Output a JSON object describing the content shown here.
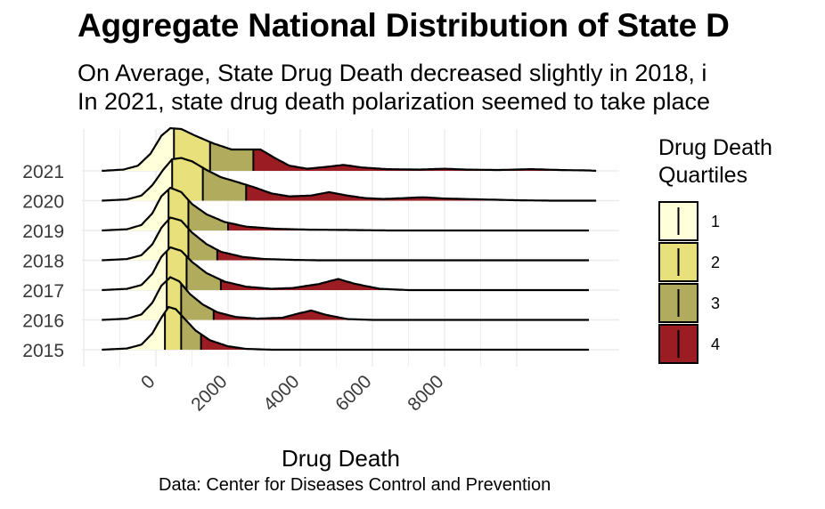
{
  "chart_data": {
    "type": "ridgeline",
    "title": "Aggregate National Distribution of State D",
    "subtitle": "On Average, State Drug Death decreased slightly in 2018, i\nIn 2021, state drug death polarization seemed to take place",
    "xlabel": "Drug Death",
    "caption": "Data: Center for Diseases Control and Prevention",
    "x_ticks": [
      0,
      2000,
      4000,
      6000,
      8000
    ],
    "xlim": [
      -2000,
      12200
    ],
    "categories": [
      "2015",
      "2016",
      "2017",
      "2018",
      "2019",
      "2020",
      "2021"
    ],
    "legend": {
      "title": "Drug Death\nQuartiles",
      "position": "right",
      "items": [
        {
          "label": "1",
          "color": "#FFFFD9"
        },
        {
          "label": "2",
          "color": "#E8E07A"
        },
        {
          "label": "3",
          "color": "#B0AB5D"
        },
        {
          "label": "4",
          "color": "#9B1C22"
        }
      ]
    },
    "series": [
      {
        "name": "2015",
        "quartiles": [
          250,
          700,
          1250
        ],
        "density": [
          [
            -1500,
            0
          ],
          [
            -800,
            0.03
          ],
          [
            -400,
            0.12
          ],
          [
            -100,
            0.38
          ],
          [
            150,
            0.75
          ],
          [
            350,
            1.0
          ],
          [
            550,
            0.95
          ],
          [
            800,
            0.72
          ],
          [
            1100,
            0.45
          ],
          [
            1500,
            0.22
          ],
          [
            2000,
            0.08
          ],
          [
            2500,
            0.02
          ],
          [
            3200,
            0
          ],
          [
            5000,
            0
          ],
          [
            8000,
            0
          ],
          [
            12000,
            0
          ]
        ]
      },
      {
        "name": "2016",
        "quartiles": [
          300,
          700,
          1600
        ],
        "density": [
          [
            -1500,
            0
          ],
          [
            -800,
            0.03
          ],
          [
            -400,
            0.13
          ],
          [
            -100,
            0.4
          ],
          [
            150,
            0.8
          ],
          [
            400,
            1.0
          ],
          [
            650,
            0.9
          ],
          [
            950,
            0.6
          ],
          [
            1300,
            0.36
          ],
          [
            1700,
            0.18
          ],
          [
            2200,
            0.07
          ],
          [
            2800,
            0.03
          ],
          [
            3500,
            0.05
          ],
          [
            3900,
            0.14
          ],
          [
            4300,
            0.22
          ],
          [
            4700,
            0.12
          ],
          [
            5300,
            0.02
          ],
          [
            6000,
            0
          ],
          [
            8000,
            0
          ],
          [
            12000,
            0
          ]
        ]
      },
      {
        "name": "2017",
        "quartiles": [
          300,
          850,
          1800
        ],
        "density": [
          [
            -1500,
            0
          ],
          [
            -800,
            0.03
          ],
          [
            -400,
            0.12
          ],
          [
            -100,
            0.38
          ],
          [
            150,
            0.78
          ],
          [
            400,
            1.0
          ],
          [
            700,
            0.92
          ],
          [
            1000,
            0.66
          ],
          [
            1400,
            0.4
          ],
          [
            1900,
            0.2
          ],
          [
            2500,
            0.08
          ],
          [
            3200,
            0.03
          ],
          [
            3800,
            0.05
          ],
          [
            4500,
            0.14
          ],
          [
            5050,
            0.26
          ],
          [
            5500,
            0.15
          ],
          [
            6200,
            0.03
          ],
          [
            7000,
            0
          ],
          [
            12000,
            0
          ]
        ]
      },
      {
        "name": "2018",
        "quartiles": [
          350,
          900,
          1700
        ],
        "density": [
          [
            -1500,
            0
          ],
          [
            -800,
            0.03
          ],
          [
            -400,
            0.12
          ],
          [
            -100,
            0.37
          ],
          [
            150,
            0.76
          ],
          [
            400,
            1.0
          ],
          [
            700,
            0.93
          ],
          [
            1000,
            0.65
          ],
          [
            1400,
            0.38
          ],
          [
            1800,
            0.2
          ],
          [
            2400,
            0.08
          ],
          [
            3000,
            0.03
          ],
          [
            3800,
            0.01
          ],
          [
            4500,
            0
          ],
          [
            6000,
            0
          ],
          [
            12000,
            0
          ]
        ]
      },
      {
        "name": "2019",
        "quartiles": [
          350,
          900,
          2000
        ],
        "density": [
          [
            -1500,
            0
          ],
          [
            -800,
            0.03
          ],
          [
            -400,
            0.13
          ],
          [
            -100,
            0.4
          ],
          [
            150,
            0.8
          ],
          [
            400,
            1.0
          ],
          [
            700,
            0.9
          ],
          [
            1000,
            0.62
          ],
          [
            1400,
            0.38
          ],
          [
            1900,
            0.2
          ],
          [
            2500,
            0.09
          ],
          [
            3300,
            0.04
          ],
          [
            4200,
            0.02
          ],
          [
            5500,
            0.01
          ],
          [
            6500,
            0
          ],
          [
            12000,
            0
          ]
        ]
      },
      {
        "name": "2020",
        "quartiles": [
          450,
          1300,
          2500
        ],
        "density": [
          [
            -1500,
            0
          ],
          [
            -800,
            0.03
          ],
          [
            -400,
            0.12
          ],
          [
            -100,
            0.36
          ],
          [
            200,
            0.72
          ],
          [
            450,
            0.97
          ],
          [
            700,
            1.0
          ],
          [
            1000,
            0.92
          ],
          [
            1400,
            0.72
          ],
          [
            1800,
            0.55
          ],
          [
            2200,
            0.45
          ],
          [
            2700,
            0.32
          ],
          [
            3200,
            0.17
          ],
          [
            3700,
            0.1
          ],
          [
            4300,
            0.12
          ],
          [
            4800,
            0.2
          ],
          [
            5300,
            0.12
          ],
          [
            5800,
            0.06
          ],
          [
            6300,
            0.04
          ],
          [
            6900,
            0.06
          ],
          [
            7400,
            0.08
          ],
          [
            8000,
            0.05
          ],
          [
            9000,
            0.03
          ],
          [
            10000,
            0.01
          ],
          [
            11000,
            0
          ],
          [
            12200,
            0
          ]
        ]
      },
      {
        "name": "2021",
        "quartiles": [
          500,
          1500,
          2700
        ],
        "density": [
          [
            -1500,
            0
          ],
          [
            -900,
            0.03
          ],
          [
            -500,
            0.12
          ],
          [
            -150,
            0.4
          ],
          [
            150,
            0.82
          ],
          [
            400,
            1.0
          ],
          [
            700,
            0.98
          ],
          [
            1100,
            0.82
          ],
          [
            1600,
            0.64
          ],
          [
            2100,
            0.5
          ],
          [
            2500,
            0.5
          ],
          [
            2900,
            0.5
          ],
          [
            3300,
            0.3
          ],
          [
            3700,
            0.12
          ],
          [
            4200,
            0.05
          ],
          [
            4800,
            0.1
          ],
          [
            5200,
            0.14
          ],
          [
            5700,
            0.08
          ],
          [
            6400,
            0.04
          ],
          [
            7300,
            0.03
          ],
          [
            8000,
            0.05
          ],
          [
            8600,
            0.03
          ],
          [
            9500,
            0.02
          ],
          [
            10400,
            0.04
          ],
          [
            11200,
            0.02
          ],
          [
            12000,
            0.01
          ],
          [
            12200,
            0
          ]
        ]
      }
    ]
  }
}
